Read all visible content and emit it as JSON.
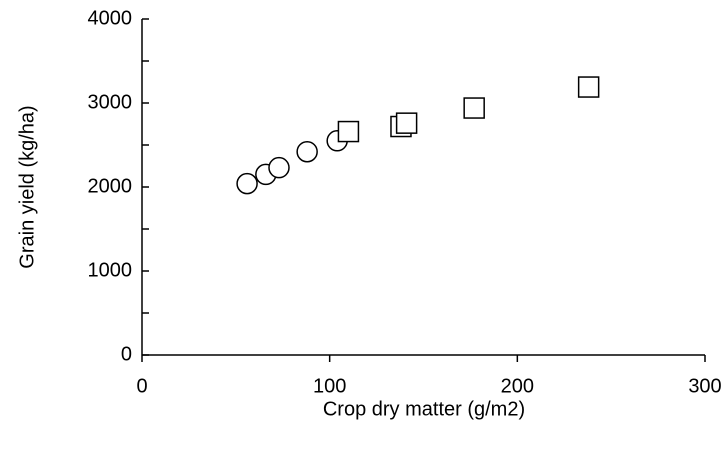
{
  "chart_data": {
    "type": "scatter",
    "x_label": "Crop dry matter (g/m2)",
    "y_label": "Grain yield (kg/ha)",
    "series": [
      {
        "marker": "circle",
        "color": "#000000",
        "x": [
          56,
          66,
          73,
          88,
          104
        ],
        "values": [
          2040,
          2150,
          2230,
          2420,
          2550
        ]
      },
      {
        "marker": "square",
        "color": "#000000",
        "x": [
          110,
          138,
          141,
          177,
          238
        ],
        "values": [
          2660,
          2720,
          2760,
          2940,
          3190
        ]
      }
    ],
    "xlim": [
      0,
      300
    ],
    "xticks": [
      0,
      100,
      200,
      300
    ],
    "ylim": [
      0,
      4000
    ],
    "yticks": [
      0,
      1000,
      2000,
      3000,
      4000
    ],
    "yminorticks": [
      500,
      1500,
      2500,
      3500
    ],
    "grid": false
  }
}
